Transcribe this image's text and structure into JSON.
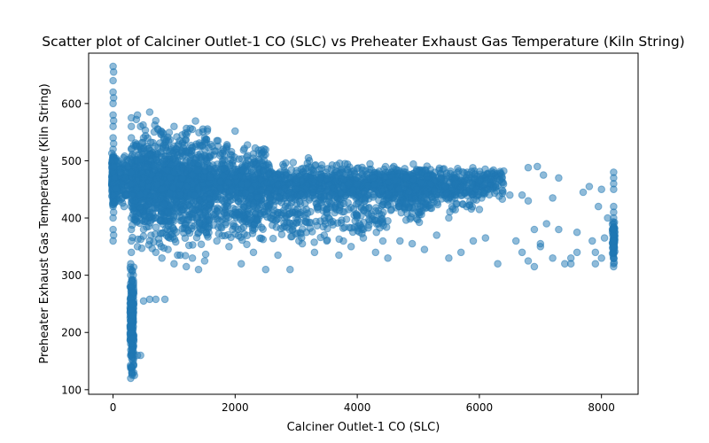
{
  "chart_data": {
    "type": "scatter",
    "title": "Scatter plot of Calciner Outlet-1 CO (SLC) vs Preheater Exhaust Gas Temperature  (Kiln String)",
    "xlabel": "Calciner Outlet-1 CO (SLC)",
    "ylabel": "Preheater Exhaust Gas Temperature  (Kiln String)",
    "xlim": [
      -400,
      8600
    ],
    "ylim": [
      92,
      688
    ],
    "xticks": [
      0,
      2000,
      4000,
      6000,
      8000
    ],
    "xtick_labels": [
      "0",
      "2000",
      "4000",
      "6000",
      "8000"
    ],
    "yticks": [
      100,
      200,
      300,
      400,
      500,
      600
    ],
    "ytick_labels": [
      "100",
      "200",
      "300",
      "400",
      "500",
      "600"
    ],
    "grid": false,
    "color": "#1f77b4",
    "points": [
      [
        0,
        665
      ],
      [
        0,
        640
      ],
      [
        0,
        620
      ],
      [
        0,
        600
      ],
      [
        0,
        580
      ],
      [
        0,
        560
      ],
      [
        0,
        540
      ],
      [
        0,
        520
      ],
      [
        0,
        500
      ],
      [
        0,
        480
      ],
      [
        0,
        460
      ],
      [
        0,
        440
      ],
      [
        0,
        420
      ],
      [
        0,
        400
      ],
      [
        0,
        380
      ],
      [
        0,
        360
      ],
      [
        10,
        655
      ],
      [
        10,
        610
      ],
      [
        10,
        570
      ],
      [
        10,
        530
      ],
      [
        10,
        490
      ],
      [
        10,
        450
      ],
      [
        10,
        410
      ],
      [
        10,
        370
      ],
      [
        30,
        470
      ],
      [
        50,
        450
      ],
      [
        80,
        500
      ],
      [
        100,
        430
      ],
      [
        120,
        480
      ],
      [
        150,
        460
      ],
      [
        180,
        420
      ],
      [
        200,
        470
      ],
      [
        220,
        440
      ],
      [
        250,
        500
      ],
      [
        290,
        120
      ],
      [
        290,
        140
      ],
      [
        290,
        160
      ],
      [
        290,
        180
      ],
      [
        290,
        200
      ],
      [
        290,
        220
      ],
      [
        290,
        240
      ],
      [
        290,
        260
      ],
      [
        290,
        280
      ],
      [
        290,
        300
      ],
      [
        290,
        320
      ],
      [
        310,
        130
      ],
      [
        310,
        170
      ],
      [
        310,
        210
      ],
      [
        310,
        250
      ],
      [
        310,
        290
      ],
      [
        330,
        150
      ],
      [
        330,
        190
      ],
      [
        330,
        230
      ],
      [
        330,
        270
      ],
      [
        350,
        125
      ],
      [
        300,
        340
      ],
      [
        300,
        360
      ],
      [
        300,
        380
      ],
      [
        300,
        400
      ],
      [
        300,
        420
      ],
      [
        300,
        440
      ],
      [
        300,
        460
      ],
      [
        300,
        480
      ],
      [
        300,
        500
      ],
      [
        300,
        520
      ],
      [
        300,
        540
      ],
      [
        300,
        560
      ],
      [
        300,
        575
      ],
      [
        400,
        580
      ],
      [
        450,
        560
      ],
      [
        500,
        540
      ],
      [
        600,
        585
      ],
      [
        700,
        570
      ],
      [
        800,
        550
      ],
      [
        400,
        160
      ],
      [
        450,
        160
      ],
      [
        500,
        255
      ],
      [
        600,
        258
      ],
      [
        700,
        258
      ],
      [
        850,
        258
      ],
      [
        400,
        350
      ],
      [
        500,
        380
      ],
      [
        600,
        360
      ],
      [
        700,
        340
      ],
      [
        800,
        330
      ],
      [
        900,
        345
      ],
      [
        1000,
        320
      ],
      [
        1100,
        335
      ],
      [
        1200,
        315
      ],
      [
        1300,
        330
      ],
      [
        1400,
        310
      ],
      [
        1500,
        325
      ],
      [
        400,
        500
      ],
      [
        500,
        470
      ],
      [
        600,
        430
      ],
      [
        700,
        490
      ],
      [
        800,
        450
      ],
      [
        900,
        410
      ],
      [
        1000,
        480
      ],
      [
        1100,
        440
      ],
      [
        1200,
        500
      ],
      [
        1300,
        460
      ],
      [
        1400,
        420
      ],
      [
        1500,
        490
      ],
      [
        1000,
        560
      ],
      [
        1200,
        545
      ],
      [
        1300,
        555
      ],
      [
        1500,
        540
      ],
      [
        1700,
        535
      ],
      [
        2000,
        552
      ],
      [
        1800,
        520
      ],
      [
        1600,
        510
      ],
      [
        1600,
        470
      ],
      [
        1800,
        440
      ],
      [
        2000,
        480
      ],
      [
        2200,
        460
      ],
      [
        2400,
        500
      ],
      [
        2600,
        430
      ],
      [
        2800,
        490
      ],
      [
        3000,
        450
      ],
      [
        3200,
        505
      ],
      [
        3400,
        470
      ],
      [
        3600,
        440
      ],
      [
        3800,
        495
      ],
      [
        4000,
        460
      ],
      [
        4200,
        485
      ],
      [
        4400,
        450
      ],
      [
        4600,
        490
      ],
      [
        4800,
        470
      ],
      [
        5000,
        480
      ],
      [
        5200,
        460
      ],
      [
        5400,
        485
      ],
      [
        5600,
        470
      ],
      [
        5800,
        480
      ],
      [
        6000,
        465
      ],
      [
        6200,
        478
      ],
      [
        6400,
        482
      ],
      [
        1700,
        360
      ],
      [
        1900,
        350
      ],
      [
        2100,
        320
      ],
      [
        2300,
        340
      ],
      [
        2500,
        310
      ],
      [
        2700,
        335
      ],
      [
        2900,
        310
      ],
      [
        3100,
        355
      ],
      [
        3300,
        340
      ],
      [
        3500,
        360
      ],
      [
        3700,
        335
      ],
      [
        3900,
        350
      ],
      [
        4100,
        365
      ],
      [
        4300,
        340
      ],
      [
        4500,
        330
      ],
      [
        4700,
        360
      ],
      [
        4900,
        355
      ],
      [
        5100,
        345
      ],
      [
        5300,
        370
      ],
      [
        5500,
        330
      ],
      [
        5700,
        340
      ],
      [
        5900,
        360
      ],
      [
        6100,
        365
      ],
      [
        6300,
        320
      ],
      [
        2000,
        410
      ],
      [
        2500,
        420
      ],
      [
        3000,
        400
      ],
      [
        3500,
        415
      ],
      [
        4000,
        405
      ],
      [
        4500,
        395
      ],
      [
        5000,
        410
      ],
      [
        5500,
        400
      ],
      [
        6000,
        415
      ],
      [
        6500,
        440
      ],
      [
        6600,
        360
      ],
      [
        6700,
        340
      ],
      [
        6800,
        325
      ],
      [
        6900,
        315
      ],
      [
        7000,
        350
      ],
      [
        7100,
        390
      ],
      [
        7200,
        330
      ],
      [
        7300,
        380
      ],
      [
        7400,
        320
      ],
      [
        7500,
        330
      ],
      [
        7600,
        375
      ],
      [
        7700,
        445
      ],
      [
        6700,
        440
      ],
      [
        6800,
        430
      ],
      [
        6900,
        380
      ],
      [
        7000,
        355
      ],
      [
        7200,
        435
      ],
      [
        7300,
        470
      ],
      [
        7500,
        320
      ],
      [
        7600,
        340
      ],
      [
        7800,
        455
      ],
      [
        7900,
        320
      ],
      [
        7950,
        420
      ],
      [
        8000,
        450
      ],
      [
        6800,
        488
      ],
      [
        6950,
        490
      ],
      [
        7050,
        475
      ],
      [
        7850,
        360
      ],
      [
        7900,
        340
      ],
      [
        8000,
        330
      ],
      [
        8050,
        365
      ],
      [
        8100,
        400
      ],
      [
        8200,
        480
      ],
      [
        8200,
        470
      ],
      [
        8200,
        460
      ],
      [
        8200,
        450
      ],
      [
        8200,
        420
      ],
      [
        8200,
        410
      ],
      [
        8200,
        400
      ],
      [
        8200,
        390
      ],
      [
        8200,
        380
      ],
      [
        8200,
        370
      ],
      [
        8200,
        360
      ],
      [
        8200,
        350
      ],
      [
        8200,
        340
      ],
      [
        8200,
        330
      ],
      [
        8200,
        320
      ],
      [
        8200,
        315
      ]
    ],
    "bands": [
      {
        "x0": 300,
        "x1": 6400,
        "ylow": 430,
        "yhigh": 490,
        "n": 1300
      },
      {
        "x0": 300,
        "x1": 2500,
        "ylow": 380,
        "yhigh": 540,
        "n": 900
      },
      {
        "x0": 300,
        "x1": 1600,
        "ylow": 330,
        "yhigh": 575,
        "n": 600
      },
      {
        "x0": 2500,
        "x1": 5200,
        "ylow": 385,
        "yhigh": 505,
        "n": 500
      },
      {
        "x0": 4500,
        "x1": 6000,
        "ylow": 400,
        "yhigh": 490,
        "n": 160
      },
      {
        "x0": 1400,
        "x1": 4500,
        "ylow": 350,
        "yhigh": 430,
        "n": 220
      },
      {
        "x0": -20,
        "x1": 30,
        "ylow": 420,
        "yhigh": 520,
        "n": 200
      },
      {
        "x0": 280,
        "x1": 340,
        "ylow": 118,
        "yhigh": 330,
        "n": 200
      },
      {
        "x0": 30,
        "x1": 280,
        "ylow": 420,
        "yhigh": 510,
        "n": 120
      },
      {
        "x0": 8180,
        "x1": 8220,
        "ylow": 320,
        "yhigh": 400,
        "n": 60
      }
    ]
  }
}
